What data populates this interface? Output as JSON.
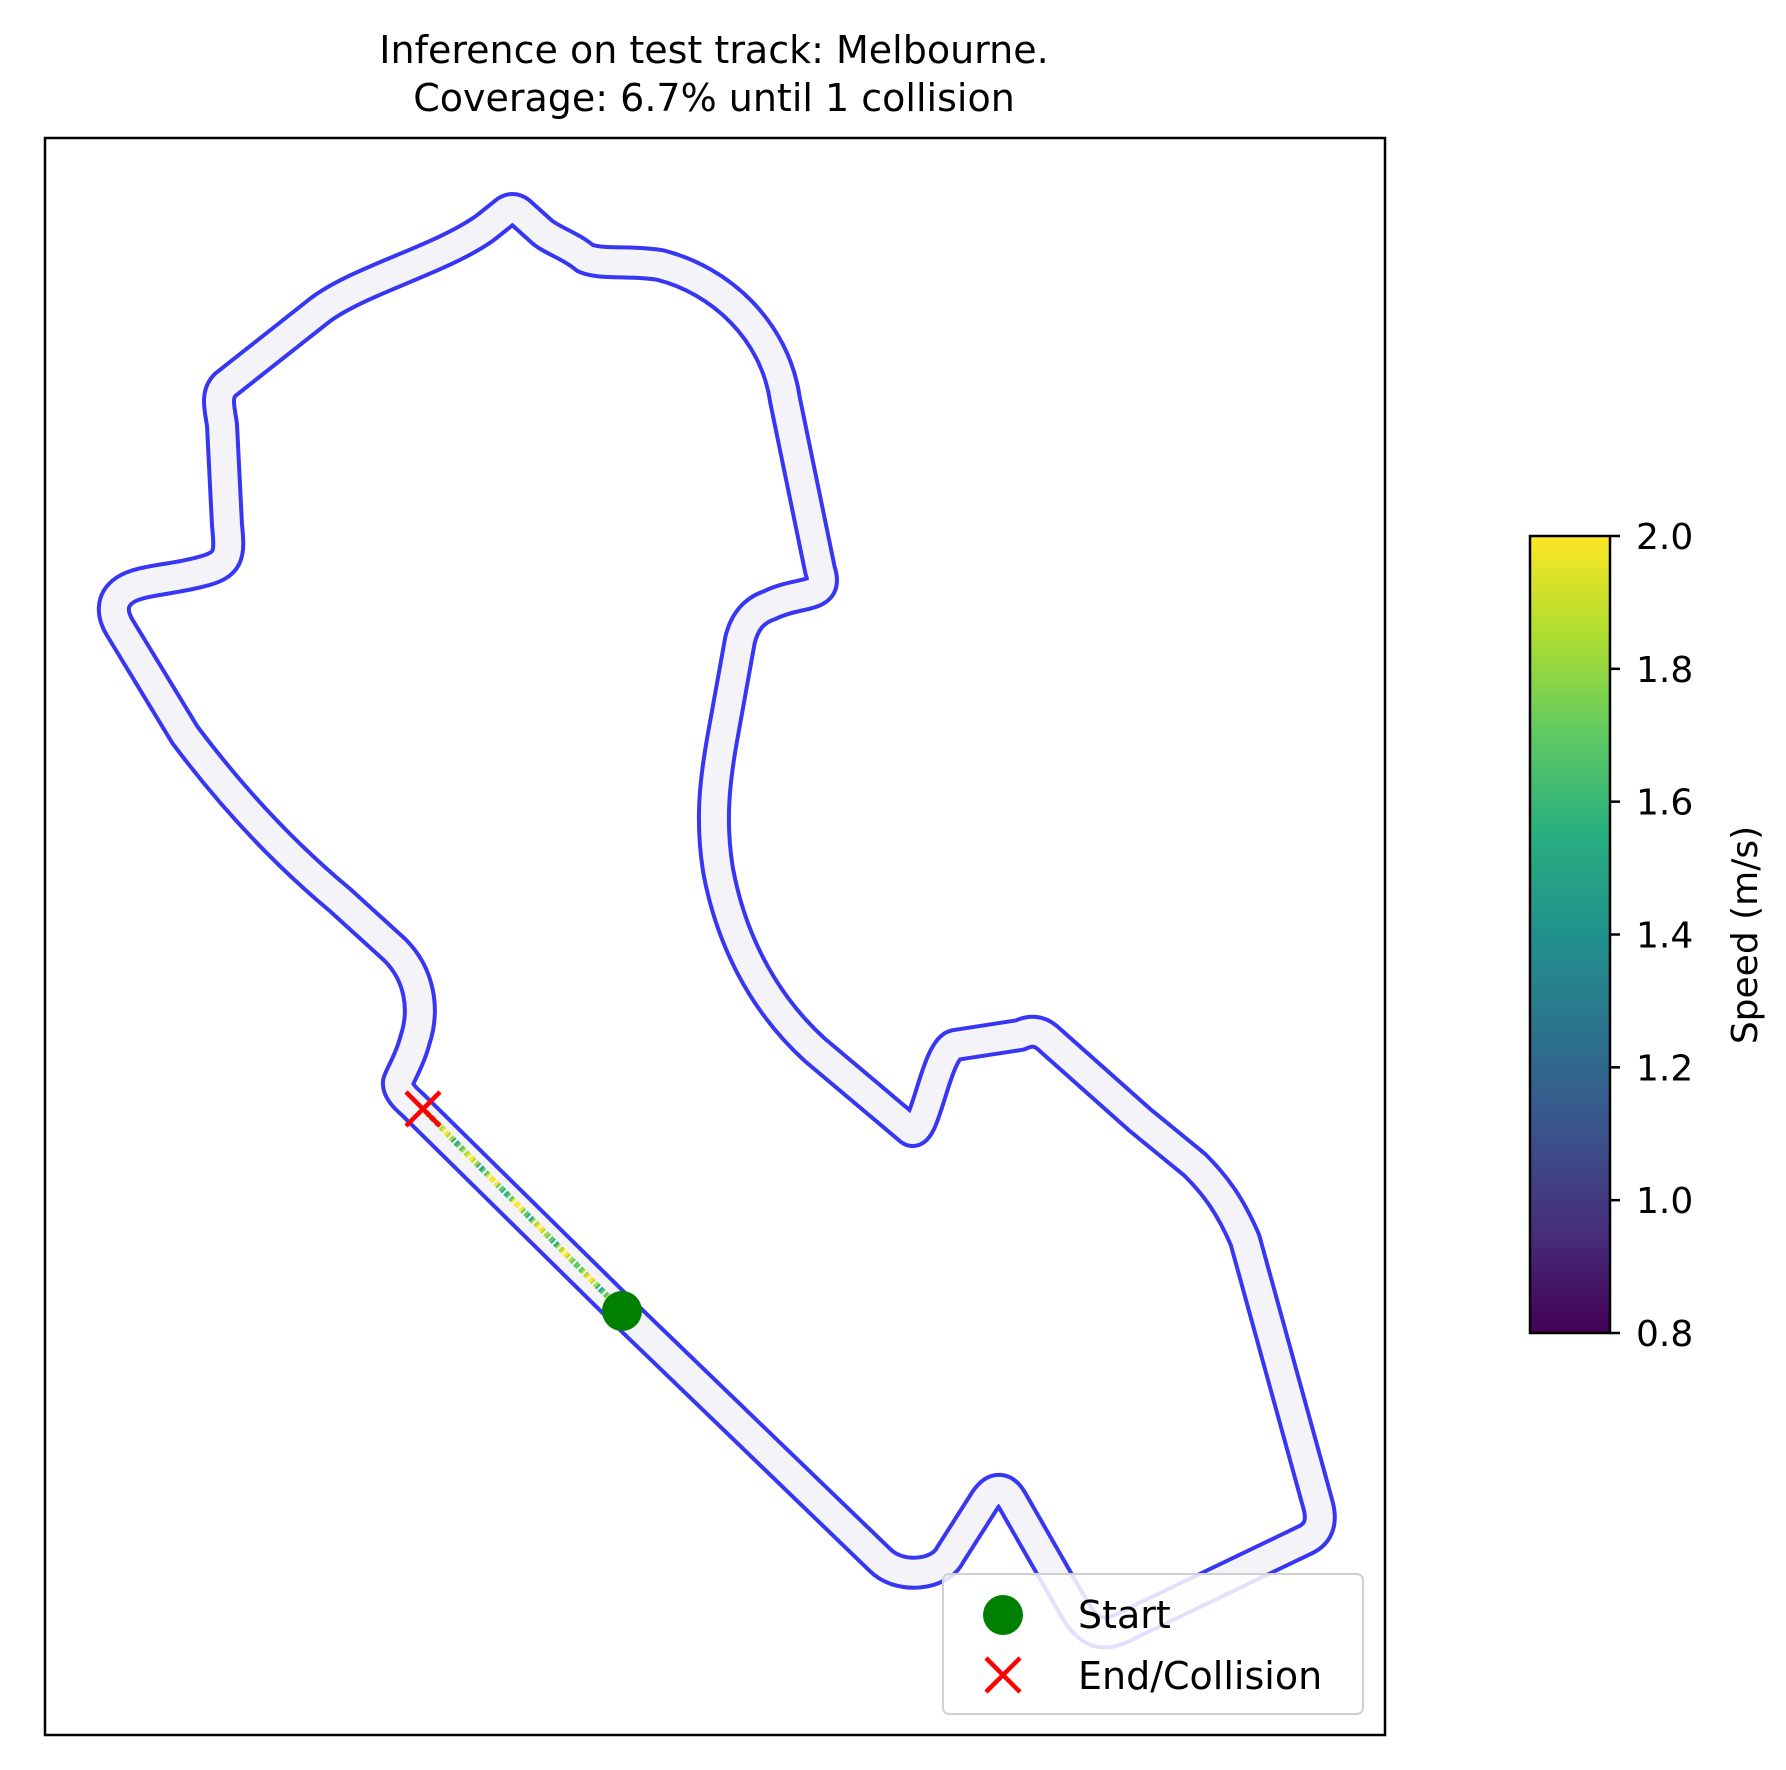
{
  "chart_data": {
    "type": "line",
    "title": "Inference on test track: Melbourne.",
    "subtitle": "Coverage: 6.7% until 1 collision",
    "xlabel": "",
    "ylabel": "",
    "axes_ticks_visible": false,
    "grid": false,
    "legend": {
      "placement": "lower right",
      "entries": [
        {
          "label": "Start",
          "marker": "circle",
          "color": "#008000"
        },
        {
          "label": "End/Collision",
          "marker": "x",
          "color": "#ff0000"
        }
      ]
    },
    "colorbar": {
      "label": "Speed (m/s)",
      "colormap": "viridis",
      "range": [
        0.8,
        2.0
      ],
      "ticks": [
        "0.8",
        "1.0",
        "1.2",
        "1.4",
        "1.6",
        "1.8",
        "2.0"
      ]
    },
    "track": {
      "name": "Melbourne",
      "edge_color": "#2b2bf2",
      "surface_color": "#f3f3f8"
    },
    "trajectory": {
      "start_label": "Start",
      "end_label": "End/Collision",
      "coverage_percent": 6.7,
      "collisions": 1,
      "speed_range_mps": [
        1.6,
        2.0
      ]
    },
    "colors": {
      "start": "#008000",
      "end": "#ff0000"
    }
  }
}
